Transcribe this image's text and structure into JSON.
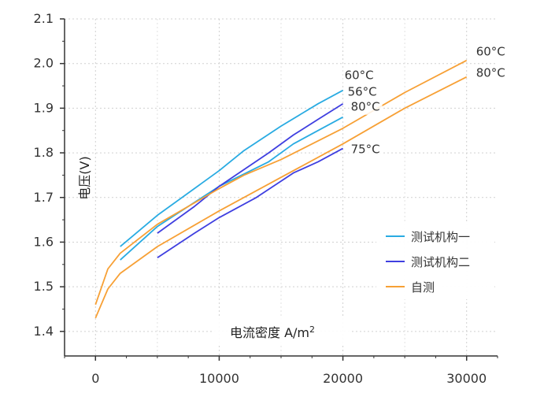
{
  "chart_data": {
    "type": "line",
    "title": "",
    "xlabel": "电流密度 A/m",
    "xlabel_sup": "2",
    "ylabel": "电压(V)",
    "xlim": [
      -2500,
      32500
    ],
    "ylim": [
      1.345,
      2.1
    ],
    "xticks": [
      0,
      10000,
      20000,
      30000
    ],
    "xtick_labels": [
      "0",
      "10000",
      "20000",
      "30000"
    ],
    "yticks": [
      1.4,
      1.5,
      1.6,
      1.7,
      1.8,
      1.9,
      2.0,
      2.1
    ],
    "ytick_labels": [
      "1.4",
      "1.5",
      "1.6",
      "1.7",
      "1.8",
      "1.9",
      "2.0",
      "2.1"
    ],
    "grid": true,
    "legend_position": "center-right",
    "series": [
      {
        "name": "测试机构一",
        "color": "#29abe2",
        "points": [
          [
            2000,
            1.59
          ],
          [
            5000,
            1.66
          ],
          [
            10000,
            1.76
          ],
          [
            12000,
            1.805
          ],
          [
            15000,
            1.86
          ],
          [
            18000,
            1.91
          ],
          [
            20000,
            1.94
          ]
        ]
      },
      {
        "name": "测试机构一",
        "color": "#29abe2",
        "points": [
          [
            2000,
            1.56
          ],
          [
            5000,
            1.635
          ],
          [
            10000,
            1.725
          ],
          [
            14000,
            1.78
          ],
          [
            16000,
            1.82
          ],
          [
            18000,
            1.85
          ],
          [
            20000,
            1.88
          ]
        ]
      },
      {
        "name": "测试机构二",
        "color": "#3f3fe0",
        "points": [
          [
            5000,
            1.62
          ],
          [
            8000,
            1.68
          ],
          [
            10000,
            1.725
          ],
          [
            14000,
            1.8
          ],
          [
            16000,
            1.84
          ],
          [
            18000,
            1.875
          ],
          [
            20000,
            1.91
          ]
        ]
      },
      {
        "name": "测试机构二",
        "color": "#3f3fe0",
        "points": [
          [
            5000,
            1.565
          ],
          [
            8000,
            1.62
          ],
          [
            10000,
            1.655
          ],
          [
            13000,
            1.7
          ],
          [
            16000,
            1.755
          ],
          [
            18000,
            1.78
          ],
          [
            20000,
            1.81
          ]
        ]
      },
      {
        "name": "自测",
        "color": "#f7a035",
        "points": [
          [
            0,
            1.46
          ],
          [
            1000,
            1.54
          ],
          [
            2000,
            1.575
          ],
          [
            5000,
            1.64
          ],
          [
            10000,
            1.72
          ],
          [
            12000,
            1.75
          ],
          [
            15000,
            1.785
          ],
          [
            20000,
            1.855
          ],
          [
            25000,
            1.935
          ],
          [
            30000,
            2.007
          ]
        ]
      },
      {
        "name": "自测",
        "color": "#f7a035",
        "points": [
          [
            0,
            1.43
          ],
          [
            1000,
            1.495
          ],
          [
            2000,
            1.53
          ],
          [
            5000,
            1.59
          ],
          [
            10000,
            1.67
          ],
          [
            15000,
            1.745
          ],
          [
            20000,
            1.82
          ],
          [
            25000,
            1.9
          ],
          [
            30000,
            1.97
          ]
        ]
      }
    ],
    "annotations": [
      {
        "text": "60°C",
        "x": 20000,
        "y": 1.94
      },
      {
        "text": "56°C",
        "x": 20000,
        "y": 1.91
      },
      {
        "text": "80°C",
        "x": 20000,
        "y": 1.88
      },
      {
        "text": "75°C",
        "x": 20000,
        "y": 1.81
      },
      {
        "text": "60°C",
        "x": 30000,
        "y": 2.007
      },
      {
        "text": "80°C",
        "x": 30000,
        "y": 1.97
      }
    ],
    "legend": [
      {
        "label": "测试机构一",
        "color": "#29abe2"
      },
      {
        "label": "测试机构二",
        "color": "#3f3fe0"
      },
      {
        "label": "自测",
        "color": "#f7a035"
      }
    ]
  }
}
